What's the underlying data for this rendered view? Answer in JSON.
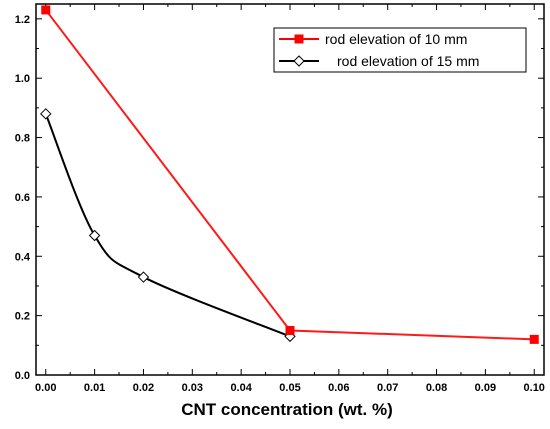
{
  "chart_data": {
    "type": "line",
    "title": "",
    "xlabel": "CNT concentration (wt. %)",
    "ylabel": "",
    "xlim": [
      -0.002,
      0.102
    ],
    "ylim": [
      0.0,
      1.25
    ],
    "x_ticks": [
      "0.00",
      "0.01",
      "0.02",
      "0.03",
      "0.04",
      "0.05",
      "0.06",
      "0.07",
      "0.08",
      "0.09",
      "0.10"
    ],
    "y_ticks": [
      "0.0",
      "0.2",
      "0.4",
      "0.6",
      "0.8",
      "1.0",
      "1.2"
    ],
    "grid": false,
    "legend_position": "top-right",
    "series": [
      {
        "name": "rod elevation of 10 mm",
        "color": "#ff0000",
        "marker": "filled-square",
        "curve": "straight",
        "x": [
          0.0,
          0.05,
          0.1
        ],
        "y": [
          1.23,
          0.15,
          0.12
        ]
      },
      {
        "name": "rod elevation of 15 mm",
        "color": "#000000",
        "marker": "open-diamond",
        "curve": "smooth",
        "x": [
          0.0,
          0.01,
          0.02,
          0.05
        ],
        "y": [
          0.88,
          0.47,
          0.33,
          0.13
        ]
      }
    ]
  }
}
